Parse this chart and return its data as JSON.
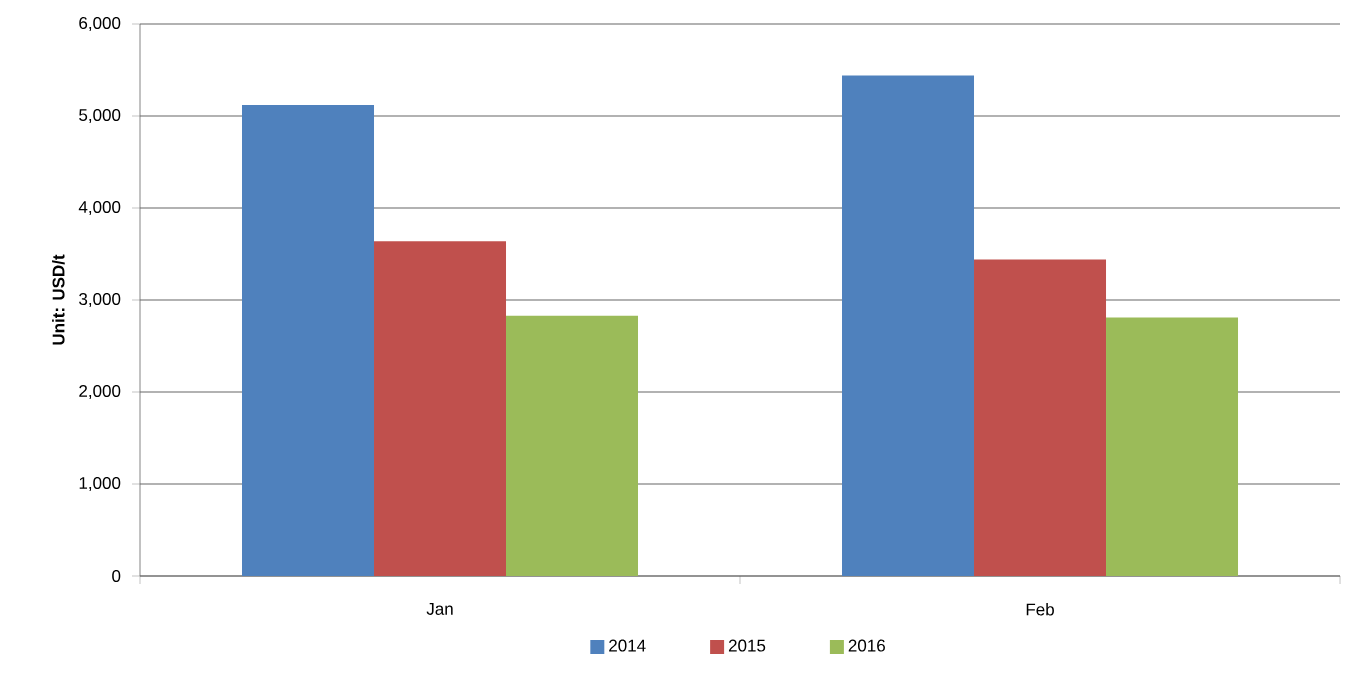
{
  "chart_data": {
    "type": "bar",
    "ylabel": "Unit: USD/t",
    "categories": [
      "Jan",
      "Feb"
    ],
    "series": [
      {
        "name": "2014",
        "color": "#4f81bd",
        "values": [
          5120,
          5440
        ]
      },
      {
        "name": "2015",
        "color": "#c0504d",
        "values": [
          3640,
          3440
        ]
      },
      {
        "name": "2016",
        "color": "#9bbb59",
        "values": [
          2830,
          2810
        ]
      }
    ],
    "ylim": [
      0,
      6000
    ],
    "yticks": [
      {
        "value": 0,
        "label": "0"
      },
      {
        "value": 1000,
        "label": "1,000"
      },
      {
        "value": 2000,
        "label": "2,000"
      },
      {
        "value": 3000,
        "label": "3,000"
      },
      {
        "value": 4000,
        "label": "4,000"
      },
      {
        "value": 5000,
        "label": "5,000"
      },
      {
        "value": 6000,
        "label": "6,000"
      }
    ],
    "grid": "y",
    "legend": "bottom"
  }
}
